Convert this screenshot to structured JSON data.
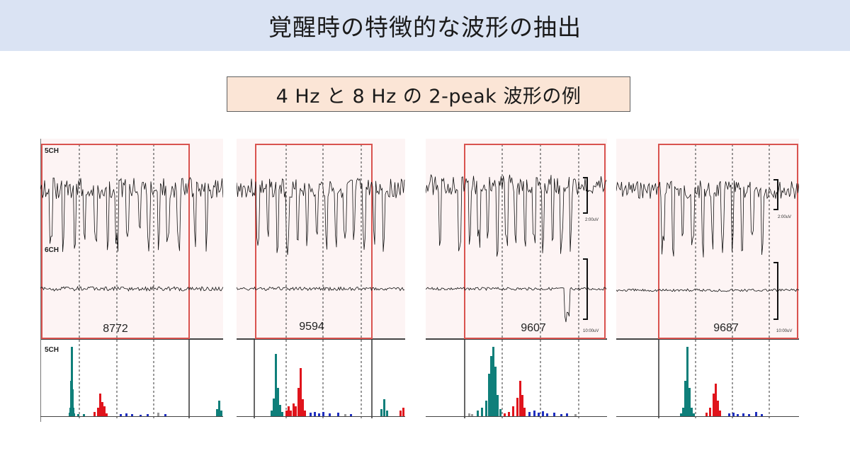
{
  "title": "覚醒時の特徴的な波形の抽出",
  "subtitle": "4 Hz と 8 Hz の 2-peak 波形の例",
  "colors": {
    "title_band": "#dae3f3",
    "subtitle_box": "#fbe5d6",
    "panel_bg": "#fdf4f4",
    "selection_border": "#d9534f",
    "bar_theta": "#0f7f7a",
    "bar_alpha": "#e0141c",
    "bar_beta": "#1f2fbf",
    "bar_gray": "#9a9a9a"
  },
  "panels": [
    {
      "epoch": "8772",
      "labels": {
        "ch_top": "5CH",
        "ch_mid": "6CH",
        "ch_spec": "5CH"
      },
      "scale_top": "",
      "scale_bottom": ""
    },
    {
      "epoch": "9594",
      "labels": {
        "ch_top": "",
        "ch_mid": "",
        "ch_spec": ""
      },
      "scale_top": "",
      "scale_bottom": ""
    },
    {
      "epoch": "9607",
      "labels": {
        "ch_top": "",
        "ch_mid": "",
        "ch_spec": ""
      },
      "scale_top": "2:00uV",
      "scale_bottom": "10:00uV"
    },
    {
      "epoch": "9687",
      "labels": {
        "ch_top": "",
        "ch_mid": "",
        "ch_spec": ""
      },
      "scale_top": "2:00uV",
      "scale_bottom": "10:00uV"
    }
  ]
}
